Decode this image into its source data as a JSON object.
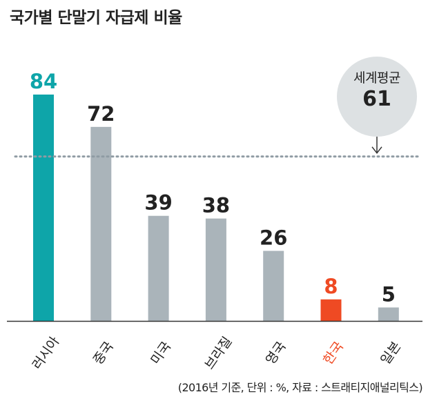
{
  "title": "국가별 단말기 자급제 비율",
  "source_note": "(2016년 기준, 단위 : %, 자료 : 스트래티지애널리틱스)",
  "colors": {
    "russia": "#0ea5a9",
    "korea": "#ef4a23",
    "default": "#aab4ba",
    "axis": "#333333",
    "reference": "#8f9ba3",
    "text": "#222222"
  },
  "chart_data": {
    "type": "bar",
    "title": "국가별 단말기 자급제 비율",
    "categories": [
      "러시아",
      "중국",
      "미국",
      "브라질",
      "영국",
      "한국",
      "일본"
    ],
    "values": [
      84,
      72,
      39,
      38,
      26,
      8,
      5
    ],
    "bar_colors": [
      "#0ea5a9",
      "#aab4ba",
      "#aab4ba",
      "#aab4ba",
      "#aab4ba",
      "#ef4a23",
      "#aab4ba"
    ],
    "label_colors": [
      "#0ea5a9",
      "#222222",
      "#222222",
      "#222222",
      "#222222",
      "#ef4a23",
      "#222222"
    ],
    "reference_line": {
      "label": "세계평균",
      "value": 61,
      "style": "dotted"
    },
    "ylim": [
      0,
      84
    ],
    "grid": false,
    "legend": "none"
  }
}
